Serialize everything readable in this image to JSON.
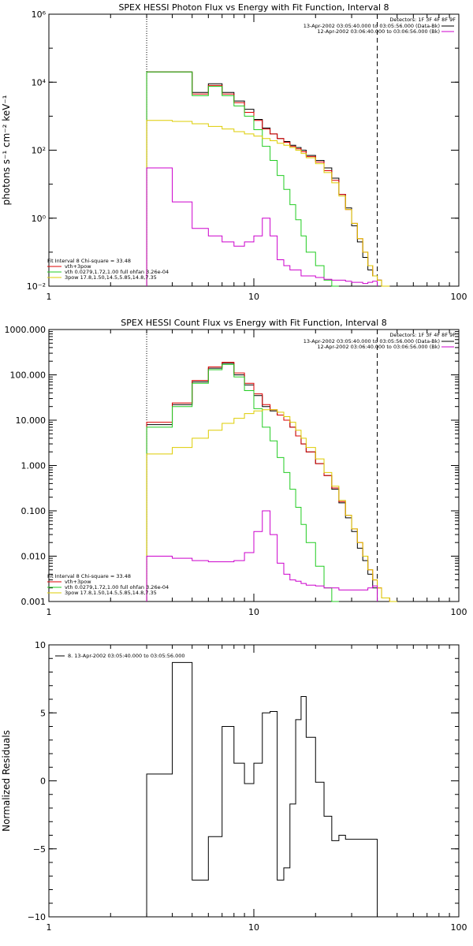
{
  "chart_data": [
    {
      "type": "step",
      "title": "SPEX HESSI Photon Flux vs Energy with Fit Function, Interval 8",
      "xlabel": "",
      "ylabel": "photons s⁻¹ cm⁻² keV⁻¹",
      "xscale": "log",
      "yscale": "log",
      "xlim": [
        1,
        100
      ],
      "ylim": [
        0.01,
        1000000
      ],
      "x_ticks": [
        "1",
        "10",
        "100"
      ],
      "y_ticks": [
        "10⁻²",
        "10⁰",
        "10²",
        "10⁴",
        "10⁶"
      ],
      "vlines": [
        {
          "x": 3,
          "style": "dotted"
        },
        {
          "x": 40,
          "style": "dashed"
        }
      ],
      "info": {
        "detectors": "Detectors: 1F 3F 4F 8F 9F",
        "intervals": [
          "13-Apr-2002 03:05:40.000 to 03:05:56.000 (Data-Bk)",
          "12-Apr-2002 03:06:40.000 to 03:06:56.000 (Bk)"
        ],
        "interval_colors": [
          "#000000",
          "#cc00cc"
        ]
      },
      "fit_legend": {
        "header": "Fit Interval 8   Chi-square = 33.48",
        "entries": [
          {
            "label": "vth+3pow",
            "color": "#dd0000"
          },
          {
            "label": "vth 0.0279,1.72,1.00  full ohfan 3.26e-04",
            "color": "#22cc22"
          },
          {
            "label": "3pow 17.8,1.50,14.5,5.85,14.8,7.35",
            "color": "#ddcc00"
          }
        ]
      },
      "bin_edges": [
        3,
        4,
        5,
        6,
        7,
        8,
        9,
        10,
        11,
        12,
        13,
        14,
        15,
        16,
        17,
        18,
        20,
        22,
        24,
        26,
        28,
        30,
        32,
        34,
        36,
        38,
        40,
        42,
        46,
        50
      ],
      "series": [
        {
          "name": "Data-Bk",
          "color": "#000000",
          "values": [
            20000,
            20000,
            5000,
            9000,
            5000,
            2800,
            1600,
            800,
            450,
            300,
            220,
            180,
            140,
            120,
            100,
            70,
            50,
            30,
            15,
            5,
            2,
            0.6,
            0.2,
            0.07,
            0.03,
            0.02,
            0.015,
            null,
            null
          ]
        },
        {
          "name": "vth+3pow",
          "color": "#dd0000",
          "values": [
            20000,
            20000,
            4500,
            8000,
            4500,
            2500,
            1300,
            750,
            420,
            300,
            220,
            170,
            130,
            110,
            90,
            65,
            45,
            25,
            13,
            5,
            1.8,
            0.7,
            0.25,
            0.1,
            0.04,
            0.02,
            0.015,
            0.01,
            null
          ]
        },
        {
          "name": "vth",
          "color": "#22cc22",
          "values": [
            20000,
            20000,
            4000,
            7500,
            4000,
            2000,
            1000,
            400,
            130,
            50,
            18,
            7,
            2.5,
            0.9,
            0.3,
            0.1,
            0.04,
            0.015,
            0.01,
            null,
            null,
            null,
            null,
            null,
            null,
            null,
            null,
            null,
            null
          ]
        },
        {
          "name": "3pow",
          "color": "#ddcc00",
          "values": [
            750,
            700,
            600,
            500,
            420,
            350,
            300,
            260,
            220,
            190,
            160,
            140,
            120,
            100,
            80,
            60,
            40,
            22,
            11,
            4.5,
            1.8,
            0.7,
            0.25,
            0.1,
            0.04,
            0.02,
            0.015,
            0.01,
            null
          ]
        },
        {
          "name": "Bk",
          "color": "#cc00cc",
          "values": [
            30,
            3,
            0.5,
            0.3,
            0.2,
            0.15,
            0.2,
            0.3,
            1.0,
            0.3,
            0.06,
            0.04,
            0.03,
            0.03,
            0.02,
            0.02,
            0.018,
            0.016,
            0.015,
            0.015,
            0.014,
            0.013,
            0.013,
            0.012,
            0.013,
            0.014,
            null,
            null,
            null
          ]
        }
      ]
    },
    {
      "type": "step",
      "title": "SPEX HESSI Count Flux vs Energy with Fit Function, Interval 8",
      "xlabel": "",
      "ylabel": "",
      "xscale": "log",
      "yscale": "log",
      "xlim": [
        1,
        100
      ],
      "ylim": [
        0.001,
        1000
      ],
      "x_ticks": [
        "1",
        "10",
        "100"
      ],
      "y_ticks": [
        "0.001",
        "0.010",
        "0.100",
        "1.000",
        "10.000",
        "100.000",
        "1000.000"
      ],
      "vlines": [
        {
          "x": 3,
          "style": "dotted"
        },
        {
          "x": 40,
          "style": "dashed"
        }
      ],
      "info": {
        "detectors": "Detectors: 1F 3F 4F 8F 9F",
        "intervals": [
          "13-Apr-2002 03:05:40.000 to 03:05:56.000 (Data-Bk)",
          "12-Apr-2002 03:06:40.000 to 03:06:56.000 (Bk)"
        ],
        "interval_colors": [
          "#000000",
          "#cc00cc"
        ]
      },
      "fit_legend": {
        "header": "Fit Interval 8   Chi-square = 33.48",
        "entries": [
          {
            "label": "vth+3pow",
            "color": "#dd0000"
          },
          {
            "label": "vth 0.0279,1.72,1.00  full ohfan 3.26e-04",
            "color": "#22cc22"
          },
          {
            "label": "3pow 17.8,1.50,14.5,5.85,14.8,7.35",
            "color": "#ddcc00"
          }
        ]
      },
      "bin_edges": [
        3,
        4,
        5,
        6,
        7,
        8,
        9,
        10,
        11,
        12,
        13,
        14,
        15,
        16,
        17,
        18,
        20,
        22,
        24,
        26,
        28,
        30,
        32,
        34,
        36,
        38,
        40,
        42,
        46,
        50
      ],
      "series": [
        {
          "name": "Data-Bk",
          "color": "#000000",
          "values": [
            8,
            22,
            70,
            140,
            180,
            100,
            60,
            35,
            20,
            16,
            13,
            10,
            7,
            4.5,
            3,
            2,
            1.1,
            0.6,
            0.3,
            0.15,
            0.07,
            0.035,
            0.015,
            0.008,
            0.004,
            0.002,
            null,
            null,
            null
          ]
        },
        {
          "name": "vth+3pow",
          "color": "#dd0000",
          "values": [
            9,
            24,
            75,
            150,
            190,
            110,
            65,
            38,
            22,
            17,
            13,
            10,
            7,
            4.5,
            3,
            2,
            1.1,
            0.6,
            0.32,
            0.16,
            0.08,
            0.04,
            0.02,
            0.01,
            0.005,
            0.003,
            0.002,
            0.0012,
            null
          ]
        },
        {
          "name": "vth",
          "color": "#22cc22",
          "values": [
            7,
            20,
            65,
            130,
            170,
            90,
            45,
            18,
            7,
            3.5,
            1.5,
            0.7,
            0.3,
            0.12,
            0.05,
            0.02,
            0.006,
            0.002,
            0.001,
            null,
            null,
            null,
            null,
            null,
            null,
            null,
            null,
            null,
            null
          ]
        },
        {
          "name": "3pow",
          "color": "#ddcc00",
          "values": [
            1.8,
            2.5,
            4,
            6,
            8.5,
            11,
            14,
            16,
            17,
            17,
            15,
            12,
            9,
            6,
            4,
            2.5,
            1.4,
            0.7,
            0.35,
            0.17,
            0.08,
            0.04,
            0.02,
            0.01,
            0.005,
            0.003,
            0.002,
            0.0012,
            0.001
          ]
        },
        {
          "name": "Bk",
          "color": "#cc00cc",
          "values": [
            0.01,
            0.009,
            0.008,
            0.0075,
            0.0075,
            0.008,
            0.012,
            0.035,
            0.1,
            0.03,
            0.007,
            0.004,
            0.003,
            0.0028,
            0.0025,
            0.0023,
            0.0022,
            0.002,
            0.002,
            0.0018,
            0.0018,
            0.0018,
            0.0018,
            0.0018,
            0.002,
            0.0022,
            null,
            null,
            null
          ]
        }
      ]
    },
    {
      "type": "step",
      "title": "",
      "xlabel": "",
      "ylabel": "Normalized Residuals",
      "xscale": "log",
      "yscale": "linear",
      "xlim": [
        1,
        100
      ],
      "ylim": [
        -10,
        10
      ],
      "x_ticks": [
        "1",
        "10",
        "100"
      ],
      "y_ticks": [
        "−10",
        "−5",
        "0",
        "5",
        "10"
      ],
      "legend": [
        {
          "label": "8. 13-Apr-2002 03:05:40.000 to 03:05:56.000",
          "color": "#000000"
        }
      ],
      "bin_edges": [
        3,
        4,
        5,
        6,
        7,
        8,
        9,
        10,
        11,
        12,
        13,
        14,
        15,
        16,
        17,
        18,
        20,
        22,
        24,
        26,
        28,
        30,
        32,
        34,
        36,
        38,
        40
      ],
      "series": [
        {
          "name": "8. 13-Apr-2002 03:05:40.000 to 03:05:56.000",
          "color": "#000000",
          "values": [
            0.5,
            8.7,
            -7.3,
            -4.1,
            4.0,
            1.3,
            -0.2,
            1.3,
            5.0,
            5.1,
            -7.3,
            -6.4,
            -1.7,
            4.5,
            6.2,
            3.2,
            -0.1,
            -2.6,
            -4.4,
            -4.0,
            -4.3,
            -4.3,
            -4.3,
            -4.3,
            -4.3,
            -4.3
          ]
        }
      ]
    }
  ]
}
